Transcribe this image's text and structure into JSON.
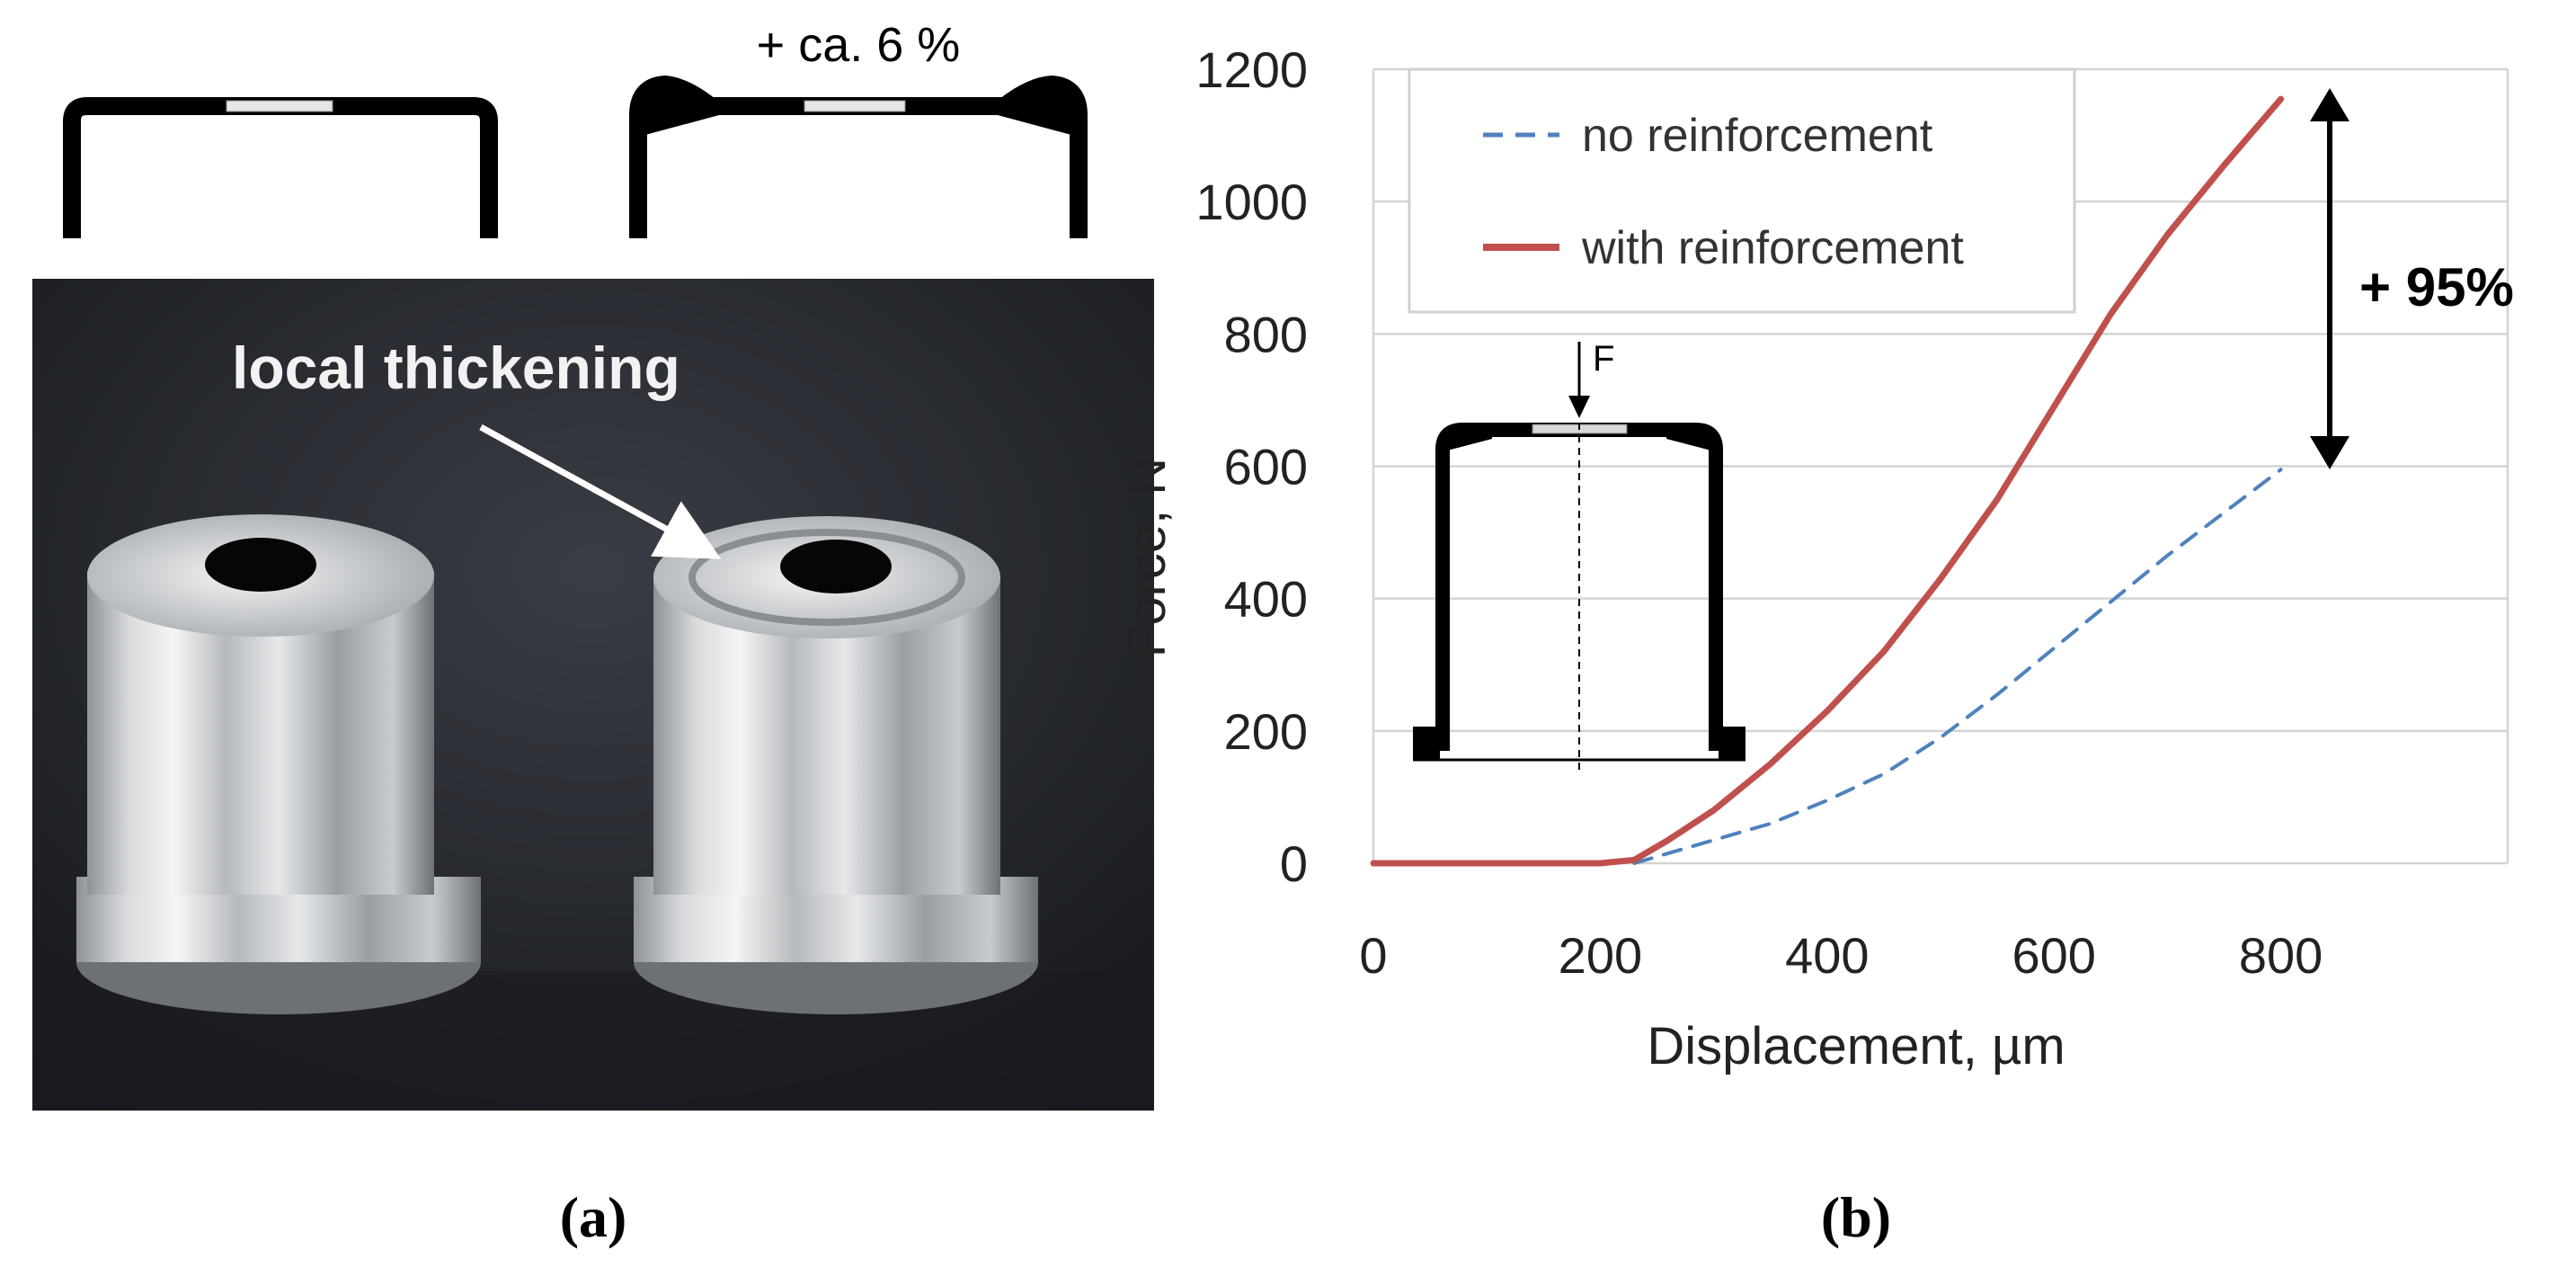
{
  "panel_a": {
    "profile_note": "+ ca. 6 %",
    "photo_label": "local thickening",
    "label": "(a)"
  },
  "panel_b": {
    "label": "(b)",
    "annotation": "+ 95%",
    "force_symbol": "F"
  },
  "chart_data": {
    "type": "line",
    "title": "",
    "xlabel": "Displacement, µm",
    "ylabel": "Force, N",
    "xlim": [
      0,
      1000
    ],
    "ylim": [
      0,
      1200
    ],
    "xticks": [
      0,
      200,
      400,
      600,
      800
    ],
    "yticks": [
      0,
      200,
      400,
      600,
      800,
      1000,
      1200
    ],
    "grid": "horizontal",
    "legend_position": "top-left",
    "series": [
      {
        "name": "no reinforcement",
        "style": "dashed",
        "color": "#4f81bd",
        "x": [
          230,
          300,
          350,
          400,
          450,
          500,
          550,
          600,
          650,
          700,
          750,
          800
        ],
        "y": [
          0,
          35,
          60,
          95,
          135,
          190,
          255,
          325,
          395,
          465,
          530,
          595
        ]
      },
      {
        "name": "with reinforcement",
        "style": "solid",
        "color": "#c0504d",
        "x": [
          0,
          100,
          200,
          230,
          260,
          300,
          350,
          400,
          450,
          500,
          550,
          600,
          650,
          700,
          750,
          800
        ],
        "y": [
          0,
          0,
          0,
          5,
          35,
          80,
          150,
          230,
          320,
          430,
          550,
          690,
          830,
          950,
          1055,
          1155
        ]
      }
    ]
  }
}
